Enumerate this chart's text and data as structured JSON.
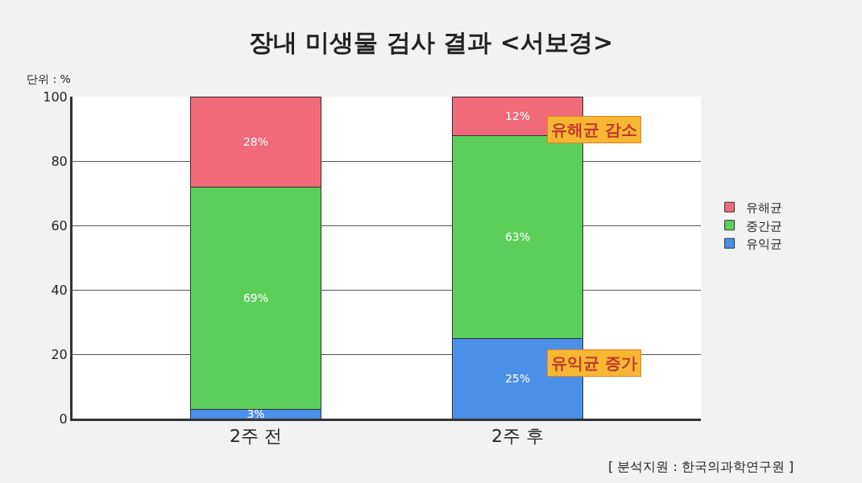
{
  "chart_data": {
    "type": "bar",
    "stacked": true,
    "title": "장내 미생물 검사 결과 <서보경>",
    "ylabel": "단위 : %",
    "categories": [
      "2주 전",
      "2주 후"
    ],
    "series": [
      {
        "name": "유익균",
        "color": "#4a8fe8",
        "values": [
          3,
          25
        ],
        "value_labels": [
          "3%",
          "25%"
        ]
      },
      {
        "name": "중간균",
        "color": "#5ccf5a",
        "values": [
          69,
          63
        ],
        "value_labels": [
          "69%",
          "63%"
        ]
      },
      {
        "name": "유해균",
        "color": "#f06a7a",
        "values": [
          28,
          12
        ],
        "value_labels": [
          "28%",
          "12%"
        ]
      }
    ],
    "ylim": [
      0,
      100
    ],
    "yticks": [
      0,
      20,
      40,
      60,
      80,
      100
    ],
    "grid": "y",
    "legend": "right",
    "annotations": [
      "유해균 감소",
      "유익균 증가",
      "[ 분석지원 : 한국의과학연구원 ]"
    ]
  }
}
